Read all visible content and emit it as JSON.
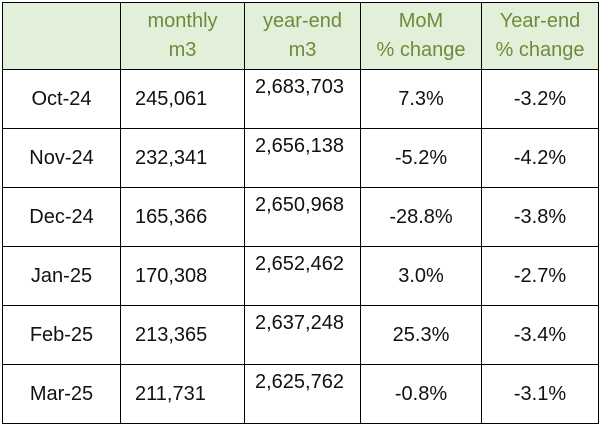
{
  "chart_data": {
    "type": "table",
    "columns": [
      {
        "key": "month",
        "lines": []
      },
      {
        "key": "monthly",
        "lines": [
          "monthly",
          "m3"
        ]
      },
      {
        "key": "year_end",
        "lines": [
          "year-end",
          "m3"
        ]
      },
      {
        "key": "mom",
        "lines": [
          "MoM",
          "% change"
        ]
      },
      {
        "key": "ye_change",
        "lines": [
          "Year-end",
          "% change"
        ]
      }
    ],
    "rows": [
      {
        "month": "Oct-24",
        "monthly": "245,061",
        "year_end": "2,683,703",
        "mom": "7.3%",
        "ye_change": "-3.2%"
      },
      {
        "month": "Nov-24",
        "monthly": "232,341",
        "year_end": "2,656,138",
        "mom": "-5.2%",
        "ye_change": "-4.2%"
      },
      {
        "month": "Dec-24",
        "monthly": "165,366",
        "year_end": "2,650,968",
        "mom": "-28.8%",
        "ye_change": "-3.8%"
      },
      {
        "month": "Jan-25",
        "monthly": "170,308",
        "year_end": "2,652,462",
        "mom": "3.0%",
        "ye_change": "-2.7%"
      },
      {
        "month": "Feb-25",
        "monthly": "213,365",
        "year_end": "2,637,248",
        "mom": "25.3%",
        "ye_change": "-3.4%"
      },
      {
        "month": "Mar-25",
        "monthly": "211,731",
        "year_end": "2,625,762",
        "mom": "-0.8%",
        "ye_change": "-3.1%"
      }
    ]
  },
  "colors": {
    "header_bg": "#e2f0d9",
    "header_text": "#6f8a3c",
    "border": "#000000",
    "cell_text": "#111111"
  }
}
